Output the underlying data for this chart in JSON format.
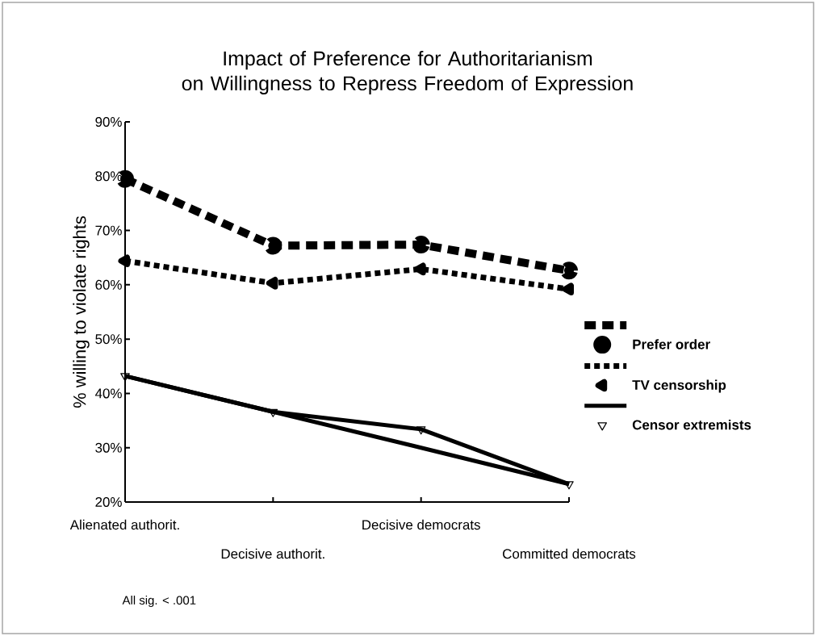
{
  "chart_data": {
    "type": "line",
    "title": "Impact of Preference for Authoritarianism\non Willingness to Repress Freedom of Expression",
    "ylabel": "% willing to violate rights",
    "categories": [
      "Alienated authorit.",
      "Decisive authorit.",
      "Decisive democrats",
      "Committed democrats"
    ],
    "series": [
      {
        "name": "Prefer order",
        "color": "#000000",
        "values": [
          79.5,
          67.2,
          67.4,
          62.6
        ],
        "line_style": "dashed",
        "marker": "circle"
      },
      {
        "name": "TV censorship",
        "color": "#000000",
        "values": [
          64.4,
          60.3,
          62.9,
          59.2
        ],
        "line_style": "dotted",
        "marker": "triangle-left"
      },
      {
        "name": "Censor extremists",
        "color": "#000000",
        "values": [
          43.2,
          36.6,
          33.4,
          23.3
        ],
        "line_style": "solid",
        "marker": "triangle-down"
      },
      {
        "type": "line",
        "color": "#000000",
        "values": [
          43.2,
          36.6,
          30,
          23.3
        ],
        "line_style": "solid",
        "marker": "none"
      }
    ],
    "ylim": [
      20,
      90
    ],
    "yticks": [
      {
        "value": 20,
        "label": "20%"
      },
      {
        "value": 30,
        "label": "30%"
      },
      {
        "value": 40,
        "label": "40%"
      },
      {
        "value": 50,
        "label": "50%"
      },
      {
        "value": 60,
        "label": "60%"
      },
      {
        "value": 70,
        "label": "70%"
      },
      {
        "value": 80,
        "label": "80%"
      },
      {
        "value": 90,
        "label": "90%"
      }
    ],
    "grid": false,
    "legend": "right",
    "annotations": [
      "All sig. < .001"
    ]
  }
}
